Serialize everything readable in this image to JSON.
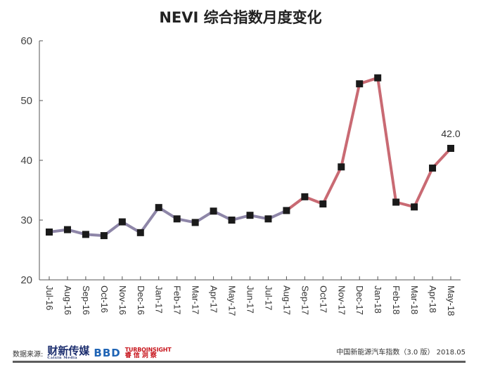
{
  "chart_data": {
    "type": "line",
    "title": "NEVI 综合指数月度变化",
    "xlabel": "",
    "ylabel": "",
    "ylim": [
      20,
      60
    ],
    "yticks": [
      20,
      30,
      40,
      50,
      60
    ],
    "grid": false,
    "categories": [
      "Jul-16",
      "Aug-16",
      "Sep-16",
      "Oct-16",
      "Nov-16",
      "Dec-16",
      "Jan-17",
      "Feb-17",
      "Mar-17",
      "Apr-17",
      "May-17",
      "Jun-17",
      "Jul-17",
      "Aug-17",
      "Sep-17",
      "Oct-17",
      "Nov-17",
      "Dec-17",
      "Jan-18",
      "Feb-18",
      "Mar-18",
      "Apr-18",
      "May-18"
    ],
    "series": [
      {
        "values": [
          28.0,
          28.4,
          27.6,
          27.4,
          29.7,
          27.9,
          32.1,
          30.2,
          29.6,
          31.5,
          30.0,
          30.8,
          30.2,
          31.6,
          33.9,
          32.7,
          38.9,
          52.8,
          53.8,
          33.0,
          32.2,
          38.7,
          42.0
        ],
        "color_2016_2017": "#8e86a8",
        "color_2017_2018": "#c96a73",
        "marker_color": "#1a1a1a"
      }
    ],
    "annotations": [
      {
        "category": "May-18",
        "text": "42.0"
      }
    ]
  },
  "footer": {
    "source_label": "数据来源:",
    "logo1_text": "财新传媒",
    "logo1_sub": "Caixin Media",
    "logo2_text": "BBD",
    "logo3_top": "TURBOINSIGHT",
    "logo3_bottom": "睿信洞察",
    "right_text": "中国新能源汽车指数（3.0 版） 2018.05"
  }
}
